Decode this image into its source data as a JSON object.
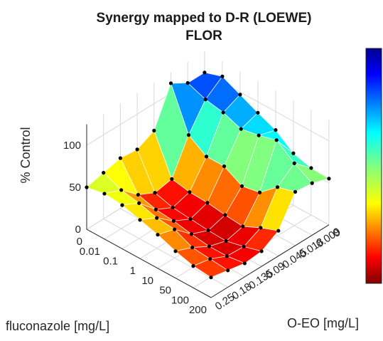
{
  "chart_data": {
    "type": "surface",
    "title_line1": "Synergy mapped to D-R (LOEWE)",
    "title_line2": "FLOR",
    "xlabel": "fluconazole [mg/L]",
    "ylabel": "O-EO [mg/L]",
    "zlabel": "% Control",
    "x_ticks": [
      "0",
      "0.01",
      "0.1",
      "1",
      "10",
      "50",
      "100",
      "200"
    ],
    "y_ticks": [
      "0",
      "0.009",
      "0.018",
      "0.045",
      "0.09",
      "0.135",
      "0.18",
      "0.25"
    ],
    "z_ticks": [
      "0",
      "50",
      "100"
    ],
    "zlim": [
      0,
      125
    ],
    "colormap": "jet",
    "colorbar": true,
    "grid": true,
    "z_matrix": [
      [
        100,
        100,
        112,
        68,
        58,
        60,
        55,
        50
      ],
      [
        107,
        92,
        62,
        22,
        18,
        28,
        46,
        54
      ],
      [
        97,
        88,
        48,
        18,
        12,
        22,
        42,
        52
      ],
      [
        87,
        80,
        48,
        17,
        10,
        20,
        36,
        46
      ],
      [
        78,
        84,
        36,
        14,
        8,
        16,
        34,
        40
      ],
      [
        62,
        90,
        40,
        12,
        7,
        13,
        24,
        32
      ],
      [
        56,
        74,
        58,
        22,
        12,
        13,
        22,
        26
      ],
      [
        55,
        62,
        64,
        30,
        18,
        16,
        20,
        24
      ]
    ]
  }
}
